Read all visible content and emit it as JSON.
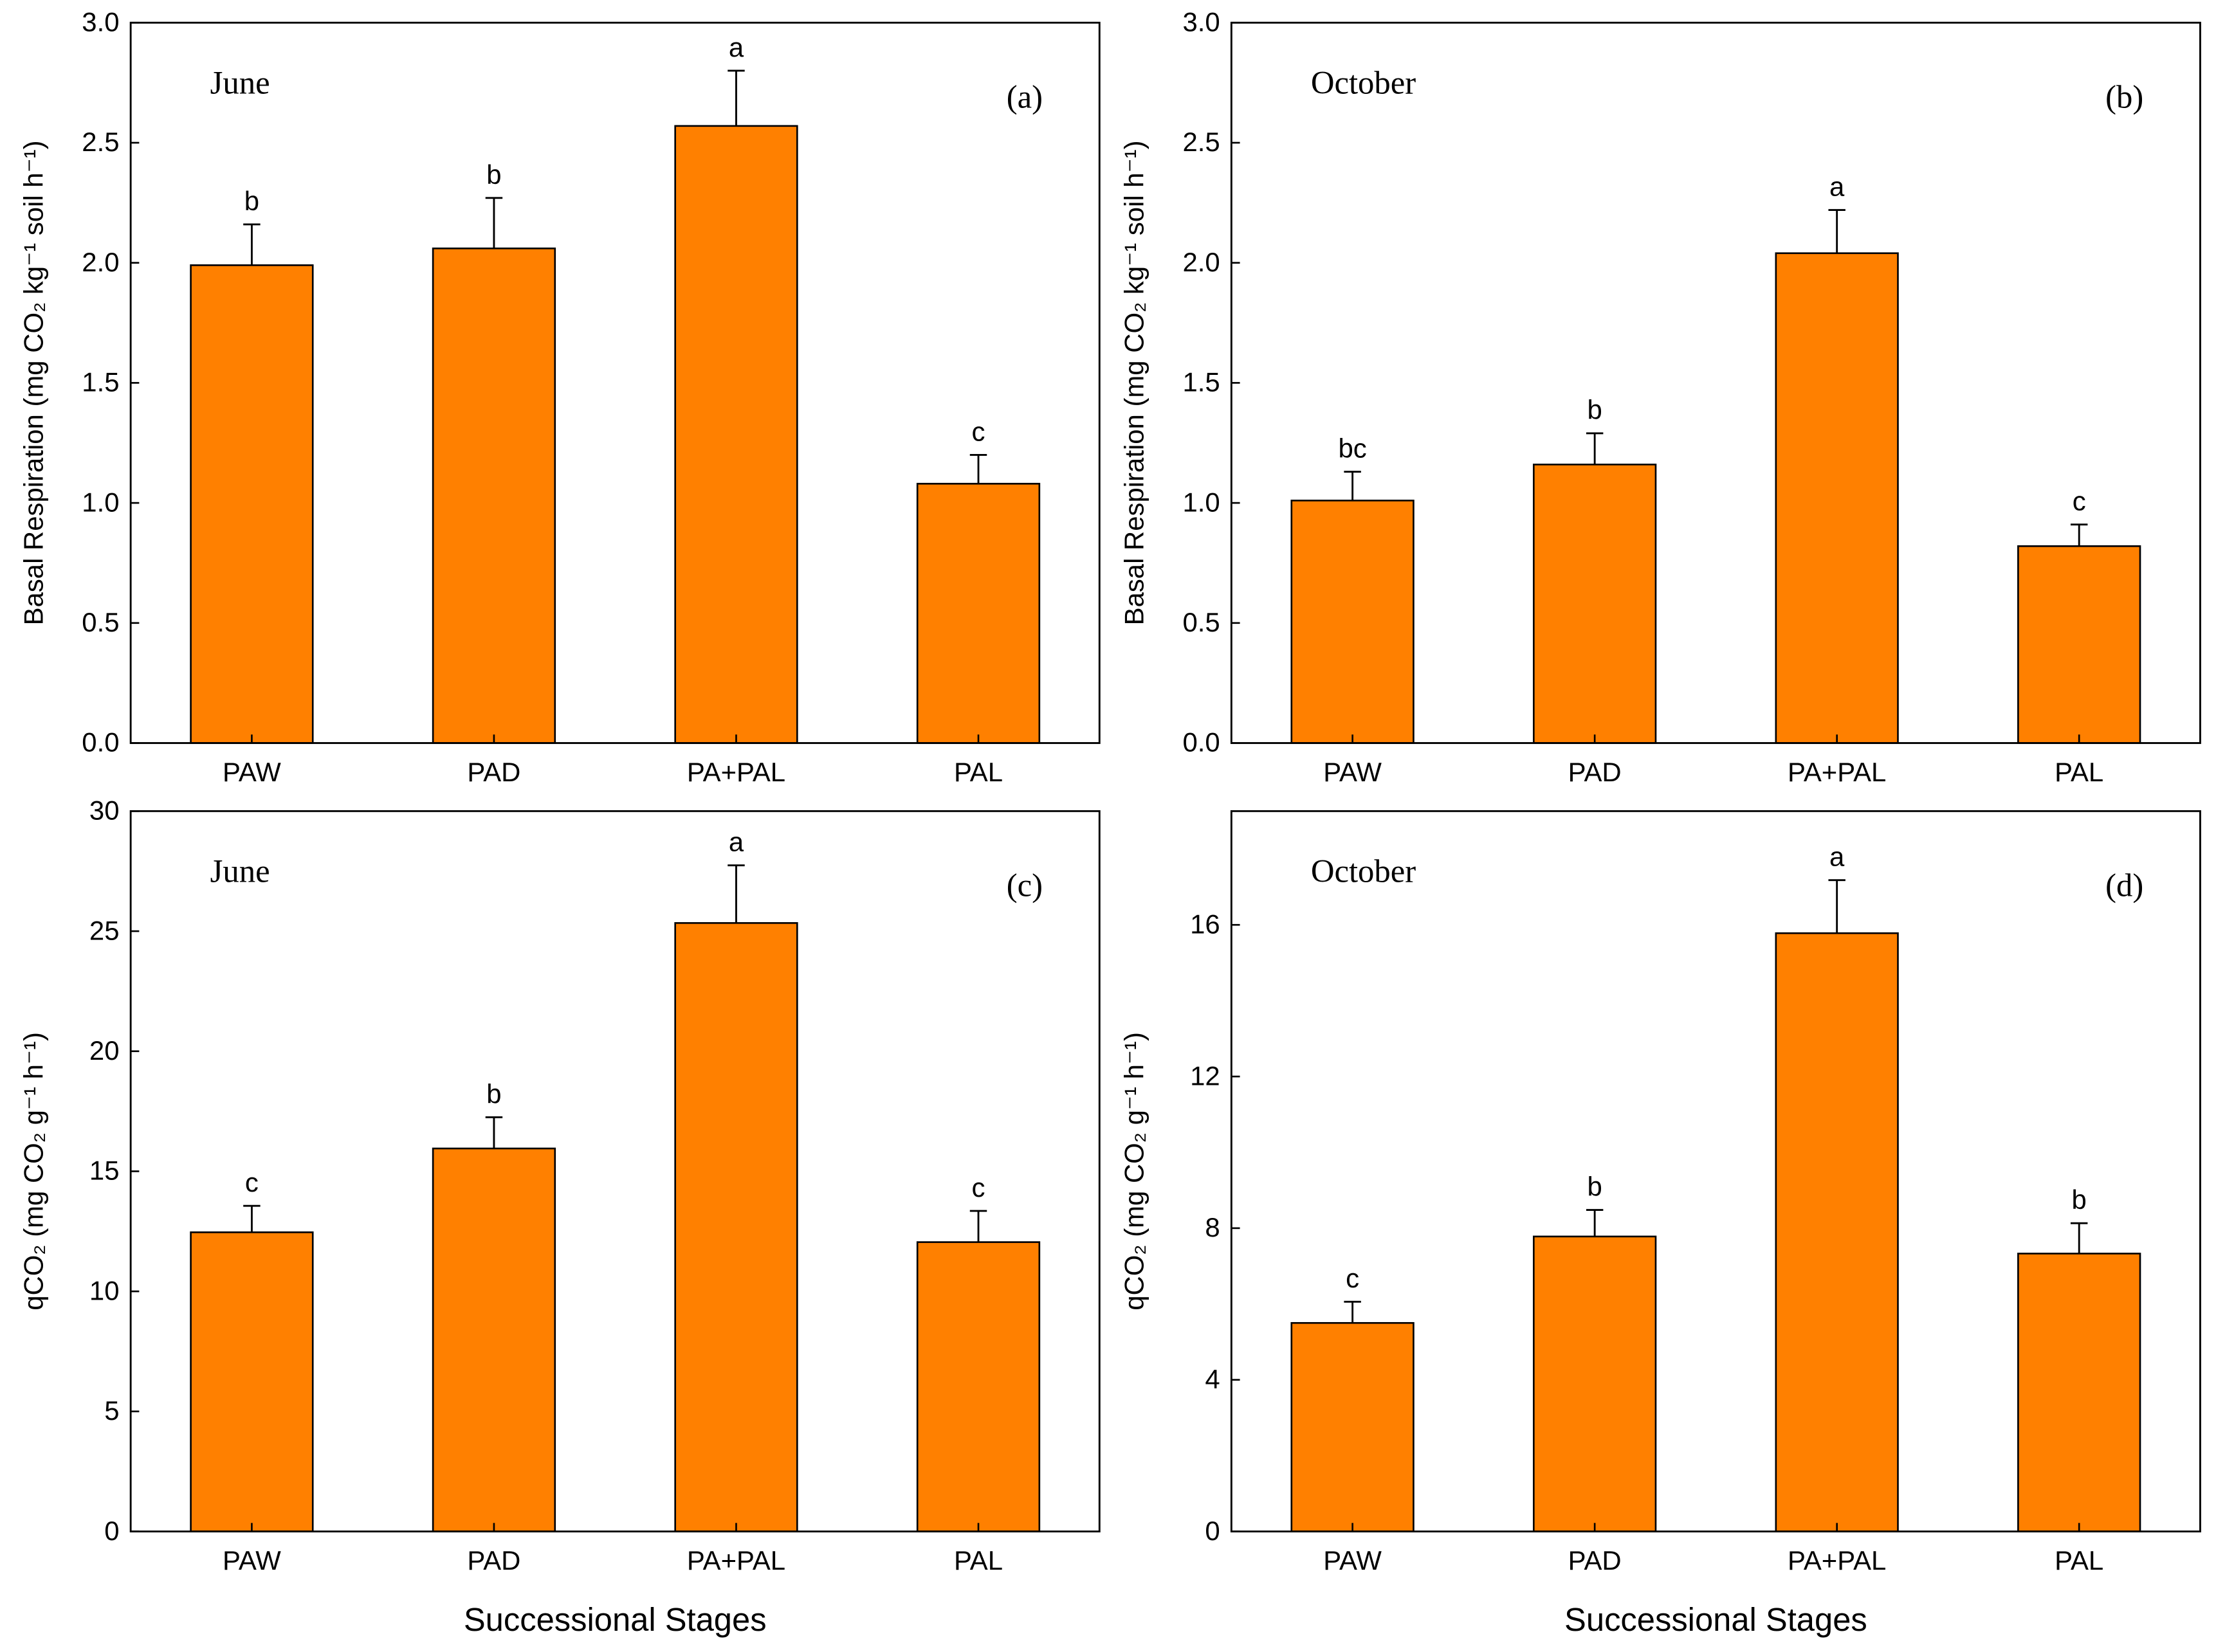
{
  "chart_data": [
    {
      "type": "bar",
      "panel": "(a)",
      "subtitle": "June",
      "ylabel": "Basal Respiration (mg CO₂ kg⁻¹ soil h⁻¹)",
      "categories": [
        "PAW",
        "PAD",
        "PA+PAL",
        "PAL"
      ],
      "values": [
        1.99,
        2.06,
        2.57,
        1.08
      ],
      "errors": [
        0.17,
        0.21,
        0.23,
        0.12
      ],
      "annotations": [
        "b",
        "b",
        "a",
        "c"
      ],
      "color": "#ff8000",
      "ylim": [
        0,
        3
      ],
      "yticks": [
        {
          "value": 0,
          "label": "0.0"
        },
        {
          "value": 0.5,
          "label": "0.5"
        },
        {
          "value": 1,
          "label": "1.0"
        },
        {
          "value": 1.5,
          "label": "1.5"
        },
        {
          "value": 2,
          "label": "2.0"
        },
        {
          "value": 2.5,
          "label": "2.5"
        },
        {
          "value": 3,
          "label": "3.0"
        }
      ]
    },
    {
      "type": "bar",
      "panel": "(b)",
      "subtitle": "October",
      "ylabel": "Basal Respiration (mg CO₂ kg⁻¹ soil h⁻¹)",
      "categories": [
        "PAW",
        "PAD",
        "PA+PAL",
        "PAL"
      ],
      "values": [
        1.01,
        1.16,
        2.04,
        0.82
      ],
      "errors": [
        0.12,
        0.13,
        0.18,
        0.09
      ],
      "annotations": [
        "bc",
        "b",
        "a",
        "c"
      ],
      "color": "#ff8000",
      "ylim": [
        0,
        3
      ],
      "yticks": [
        {
          "value": 0,
          "label": "0.0"
        },
        {
          "value": 0.5,
          "label": "0.5"
        },
        {
          "value": 1,
          "label": "1.0"
        },
        {
          "value": 1.5,
          "label": "1.5"
        },
        {
          "value": 2,
          "label": "2.0"
        },
        {
          "value": 2.5,
          "label": "2.5"
        },
        {
          "value": 3,
          "label": "3.0"
        }
      ]
    },
    {
      "type": "bar",
      "panel": "(c)",
      "subtitle": "June",
      "ylabel": "qCO₂ (mg CO₂ g⁻¹ h⁻¹)",
      "xlabel": "Successional Stages",
      "categories": [
        "PAW",
        "PAD",
        "PA+PAL",
        "PAL"
      ],
      "values": [
        12.46,
        15.95,
        25.34,
        12.05
      ],
      "errors": [
        1.1,
        1.3,
        2.4,
        1.3
      ],
      "annotations": [
        "c",
        "b",
        "a",
        "c"
      ],
      "color": "#ff8000",
      "ylim": [
        0,
        30
      ],
      "yticks": [
        0,
        5,
        10,
        15,
        20,
        25,
        30
      ]
    },
    {
      "type": "bar",
      "panel": "(d)",
      "subtitle": "October",
      "ylabel": "qCO₂ (mg CO₂ g⁻¹ h⁻¹)",
      "xlabel": "Successional Stages",
      "categories": [
        "PAW",
        "PAD",
        "PA+PAL",
        "PAL"
      ],
      "values": [
        5.5,
        7.78,
        15.78,
        7.33
      ],
      "errors": [
        0.56,
        0.7,
        1.4,
        0.8
      ],
      "annotations": [
        "c",
        "b",
        "a",
        "b"
      ],
      "color": "#ff8000",
      "ylim": [
        0,
        19
      ],
      "yticks": [
        0,
        4,
        8,
        12,
        16
      ]
    }
  ]
}
